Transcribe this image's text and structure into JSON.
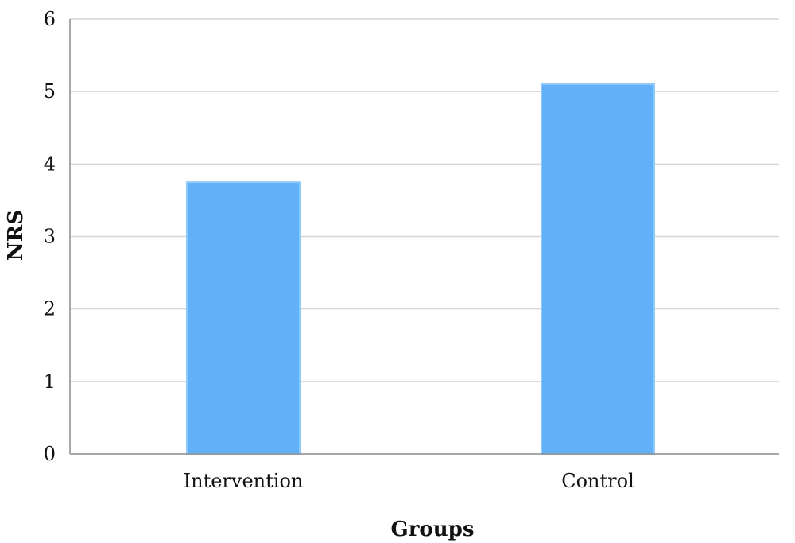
{
  "chart_data": {
    "type": "bar",
    "title": "",
    "xlabel": "Groups",
    "ylabel": "NRS",
    "categories": [
      "Intervention",
      "Control"
    ],
    "values": [
      3.75,
      5.1
    ],
    "ylim": [
      0,
      6
    ],
    "yticks": [
      "0",
      "1",
      "2",
      "3",
      "4",
      "5",
      "6"
    ],
    "grid": true,
    "legend": "none",
    "colors": {
      "bar": "#62b0f7",
      "bar_edge": "#8ccaf9",
      "grid": "#d6d6d6",
      "axis": "#8c8c8c"
    }
  }
}
